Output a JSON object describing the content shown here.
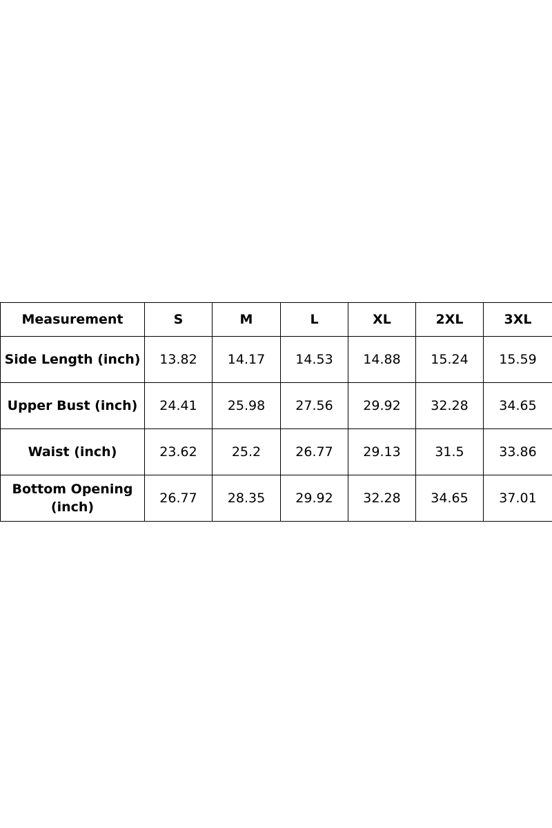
{
  "table": {
    "headers": [
      "Measurement",
      "S",
      "M",
      "L",
      "XL",
      "2XL",
      "3XL"
    ],
    "rows": [
      [
        "Side Length (inch)",
        "13.82",
        "14.17",
        "14.53",
        "14.88",
        "15.24",
        "15.59"
      ],
      [
        "Upper Bust (inch)",
        "24.41",
        "25.98",
        "27.56",
        "29.92",
        "32.28",
        "34.65"
      ],
      [
        "Waist (inch)",
        "23.62",
        "25.2",
        "26.77",
        "29.13",
        "31.5",
        "33.86"
      ],
      [
        "Bottom Opening (inch)",
        "26.77",
        "28.35",
        "29.92",
        "32.28",
        "34.65",
        "37.01"
      ]
    ]
  }
}
